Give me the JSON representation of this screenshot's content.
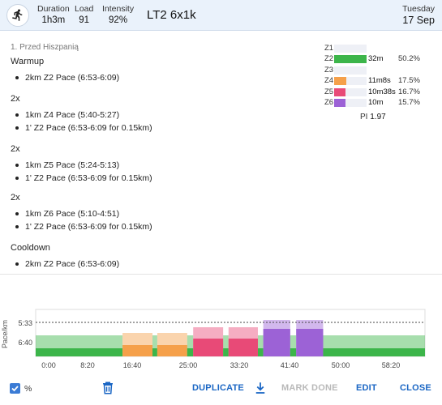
{
  "header": {
    "duration_label": "Duration",
    "duration_value": "1h3m",
    "load_label": "Load",
    "load_value": "91",
    "intensity_label": "Intensity",
    "intensity_value": "92%",
    "title": "LT2 6x1k",
    "day": "Tuesday",
    "date": "17 Sep"
  },
  "description": {
    "title": "1. Przed Hiszpanią",
    "sections": [
      {
        "heading": "Warmup",
        "items": [
          "2km Z2 Pace (6:53-6:09)"
        ]
      },
      {
        "heading": "2x",
        "items": [
          "1km Z4 Pace (5:40-5:27)",
          "1' Z2 Pace (6:53-6:09 for 0.15km)"
        ]
      },
      {
        "heading": "2x",
        "items": [
          "1km Z5 Pace (5:24-5:13)",
          "1' Z2 Pace (6:53-6:09 for 0.15km)"
        ]
      },
      {
        "heading": "2x",
        "items": [
          "1km Z6 Pace (5:10-4:51)",
          "1' Z2 Pace (6:53-6:09 for 0.15km)"
        ]
      },
      {
        "heading": "Cooldown",
        "items": [
          "2km Z2 Pace (6:53-6:09)"
        ]
      }
    ]
  },
  "zones": [
    {
      "label": "Z1",
      "time": "",
      "pct": "",
      "fill": 0,
      "color": "#3cb54a"
    },
    {
      "label": "Z2",
      "time": "32m",
      "pct": "50.2%",
      "fill": 1.0,
      "color": "#3cb54a"
    },
    {
      "label": "Z3",
      "time": "",
      "pct": "",
      "fill": 0,
      "color": "#3cb54a"
    },
    {
      "label": "Z4",
      "time": "11m8s",
      "pct": "17.5%",
      "fill": 0.38,
      "color": "#f5a04a"
    },
    {
      "label": "Z5",
      "time": "10m38s",
      "pct": "16.7%",
      "fill": 0.36,
      "color": "#e84a77"
    },
    {
      "label": "Z6",
      "time": "10m",
      "pct": "15.7%",
      "fill": 0.34,
      "color": "#9c62d6"
    }
  ],
  "pi_label": "PI",
  "pi_value": "1.97",
  "chart_data": {
    "type": "bar",
    "ylabel": "Pace/km",
    "y_ticks": [
      "5:33",
      "6:40"
    ],
    "x_ticks": [
      "0:00",
      "8:20",
      "16:40",
      "25:00",
      "33:20",
      "41:40",
      "50:00",
      "58:20"
    ],
    "x_range_min": [
      0,
      65
    ],
    "reference_line": "5:33",
    "segments": [
      {
        "zone": "Z2",
        "start": 0,
        "end": 14.5,
        "color": "#3cb54a"
      },
      {
        "zone": "Z4",
        "start": 14.5,
        "end": 19.5,
        "color": "#f5a04a"
      },
      {
        "zone": "Z2",
        "start": 19.5,
        "end": 20.3,
        "color": "#3cb54a"
      },
      {
        "zone": "Z4",
        "start": 20.3,
        "end": 25.3,
        "color": "#f5a04a"
      },
      {
        "zone": "Z2",
        "start": 25.3,
        "end": 26.3,
        "color": "#3cb54a"
      },
      {
        "zone": "Z5",
        "start": 26.3,
        "end": 31.3,
        "color": "#e84a77"
      },
      {
        "zone": "Z2",
        "start": 31.3,
        "end": 32.2,
        "color": "#3cb54a"
      },
      {
        "zone": "Z5",
        "start": 32.2,
        "end": 37.1,
        "color": "#e84a77"
      },
      {
        "zone": "Z2",
        "start": 37.1,
        "end": 38.0,
        "color": "#3cb54a"
      },
      {
        "zone": "Z6",
        "start": 38.0,
        "end": 42.5,
        "color": "#9c62d6"
      },
      {
        "zone": "Z2",
        "start": 42.5,
        "end": 43.5,
        "color": "#3cb54a"
      },
      {
        "zone": "Z6",
        "start": 43.5,
        "end": 48.0,
        "color": "#9c62d6"
      },
      {
        "zone": "Z2",
        "start": 48.0,
        "end": 65.0,
        "color": "#3cb54a"
      }
    ]
  },
  "footer": {
    "percent_label": "%",
    "duplicate": "DUPLICATE",
    "mark_done": "MARK DONE",
    "edit": "EDIT",
    "close": "CLOSE"
  },
  "icons": {
    "runner": "runner-icon",
    "trash": "trash-icon",
    "download": "download-icon",
    "check": "checkbox-check-icon"
  }
}
